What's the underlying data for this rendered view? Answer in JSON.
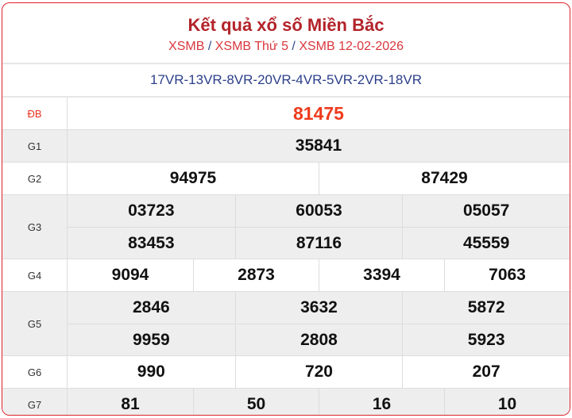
{
  "header": {
    "title": "Kết quả xổ số Miền Bắc",
    "breadcrumbs": [
      "XSMB",
      "XSMB Thứ 5",
      "XSMB 12-02-2026"
    ],
    "separator": "/"
  },
  "codes": "17VR-13VR-8VR-20VR-4VR-5VR-2VR-18VR",
  "prizes": [
    {
      "label": "ĐB",
      "numbers": [
        "81475"
      ]
    },
    {
      "label": "G1",
      "numbers": [
        "35841"
      ]
    },
    {
      "label": "G2",
      "numbers": [
        "94975",
        "87429"
      ]
    },
    {
      "label": "G3",
      "numbers": [
        "03723",
        "60053",
        "05057",
        "83453",
        "87116",
        "45559"
      ]
    },
    {
      "label": "G4",
      "numbers": [
        "9094",
        "2873",
        "3394",
        "7063"
      ]
    },
    {
      "label": "G5",
      "numbers": [
        "2846",
        "3632",
        "5872",
        "9959",
        "2808",
        "5923"
      ]
    },
    {
      "label": "G6",
      "numbers": [
        "990",
        "720",
        "207"
      ]
    },
    {
      "label": "G7",
      "numbers": [
        "81",
        "50",
        "16",
        "10"
      ]
    }
  ],
  "colors": {
    "border": "#e0212b",
    "title": "#b3232a",
    "special": "#ee3a1c",
    "codes": "#2c3f8a"
  }
}
